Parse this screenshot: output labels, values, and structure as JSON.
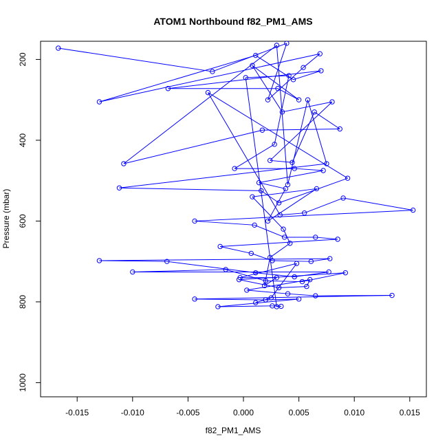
{
  "chart_data": {
    "type": "line",
    "title": "ATOM1 Northbound f82_PM1_AMS",
    "xlabel": "f82_PM1_AMS",
    "ylabel": "Pressure (mbar)",
    "xlim": [
      -0.0183,
      0.0165
    ],
    "ylim": [
      1035,
      155
    ],
    "y_reversed": true,
    "x_ticks": [
      -0.015,
      -0.01,
      -0.005,
      0.0,
      0.005,
      0.01,
      0.015
    ],
    "x_tick_labels": [
      "-0.015",
      "-0.010",
      "-0.005",
      "0.000",
      "0.005",
      "0.010",
      "0.015"
    ],
    "y_ticks": [
      200,
      400,
      600,
      800,
      1000
    ],
    "y_tick_labels": [
      "200",
      "400",
      "600",
      "800",
      "1000"
    ],
    "marker": "open-circle",
    "series_color": "#0000ff",
    "series": [
      {
        "name": "f82_PM1_AMS",
        "points": [
          [
            -0.0167,
            172
          ],
          [
            -0.0028,
            230
          ],
          [
            0.0039,
            160
          ],
          [
            0.0022,
            300
          ],
          [
            0.0054,
            220
          ],
          [
            0.0069,
            186
          ],
          [
            -0.013,
            305
          ],
          [
            0.0011,
            190
          ],
          [
            0.0045,
            250
          ],
          [
            0.007,
            228
          ],
          [
            -0.0068,
            272
          ],
          [
            0.0031,
            272
          ],
          [
            0.005,
            300
          ],
          [
            0.0008,
            215
          ],
          [
            0.0035,
            330
          ],
          [
            0.008,
            305
          ],
          [
            0.0024,
            450
          ],
          [
            0.0044,
            455
          ],
          [
            0.0064,
            330
          ],
          [
            0.0087,
            372
          ],
          [
            0.0017,
            375
          ],
          [
            -0.0108,
            458
          ],
          [
            0.003,
            165
          ],
          [
            0.004,
            510
          ],
          [
            0.0058,
            300
          ],
          [
            0.0075,
            458
          ],
          [
            -0.0112,
            518
          ],
          [
            0.0016,
            525
          ],
          [
            0.0032,
            555
          ],
          [
            0.0094,
            494
          ],
          [
            -0.0032,
            282
          ],
          [
            0.0033,
            585
          ],
          [
            0.0055,
            580
          ],
          [
            0.009,
            543
          ],
          [
            0.0153,
            573
          ],
          [
            -0.0044,
            600
          ],
          [
            0.001,
            610
          ],
          [
            0.0037,
            640
          ],
          [
            0.0065,
            640
          ],
          [
            0.0085,
            645
          ],
          [
            -0.0021,
            663
          ],
          [
            0.0007,
            680
          ],
          [
            0.0026,
            698
          ],
          [
            0.0061,
            700
          ],
          [
            0.0078,
            693
          ],
          [
            -0.013,
            698
          ],
          [
            -0.0069,
            700
          ],
          [
            0.0011,
            728
          ],
          [
            0.0046,
            738
          ],
          [
            0.0077,
            726
          ],
          [
            -0.01,
            726
          ],
          [
            -0.0016,
            720
          ],
          [
            0.002,
            748
          ],
          [
            0.0053,
            750
          ],
          [
            0.0092,
            728
          ],
          [
            -0.0004,
            745
          ],
          [
            0.0032,
            765
          ],
          [
            0.0057,
            762
          ],
          [
            0.006,
            745
          ],
          [
            0.0003,
            771
          ],
          [
            0.004,
            780
          ],
          [
            0.0065,
            785
          ],
          [
            0.0134,
            784
          ],
          [
            -0.0044,
            793
          ],
          [
            0.002,
            795
          ],
          [
            0.005,
            793
          ],
          [
            -0.0023,
            812
          ],
          [
            0.0026,
            810
          ],
          [
            0.0034,
            811
          ],
          [
            0.003,
            812
          ],
          [
            0.0002,
            245
          ],
          [
            0.0041,
            240
          ],
          [
            0.0028,
            410
          ],
          [
            -0.0008,
            470
          ],
          [
            0.0046,
            470
          ],
          [
            0.0072,
            475
          ],
          [
            0.0014,
            505
          ],
          [
            0.0038,
            520
          ],
          [
            0.0022,
            600
          ],
          [
            0.0066,
            520
          ],
          [
            0.0008,
            540
          ],
          [
            0.0036,
            620
          ],
          [
            0.0042,
            655
          ],
          [
            0.0024,
            690
          ],
          [
            0.0019,
            760
          ],
          [
            0.003,
            740
          ],
          [
            -0.0003,
            740
          ],
          [
            0.0048,
            705
          ],
          [
            0.0025,
            790
          ],
          [
            0.0011,
            802
          ]
        ]
      }
    ]
  }
}
